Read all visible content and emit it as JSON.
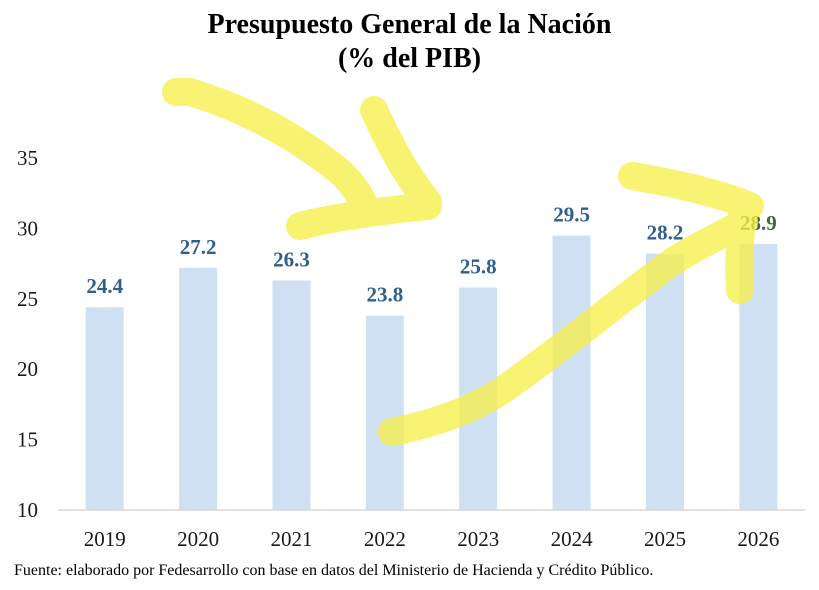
{
  "chart_data": {
    "type": "bar",
    "title": "Presupuesto General de la Nación",
    "subtitle": "(% del PIB)",
    "categories": [
      "2019",
      "2020",
      "2021",
      "2022",
      "2023",
      "2024",
      "2025",
      "2026"
    ],
    "values": [
      24.4,
      27.2,
      26.3,
      23.8,
      25.8,
      29.5,
      28.2,
      28.9
    ],
    "data_labels": [
      "24.4",
      "27.2",
      "26.3",
      "23.8",
      "25.8",
      "29.5",
      "28.2",
      "28.9"
    ],
    "ylim": [
      10,
      35
    ],
    "yticks": [
      "10",
      "15",
      "20",
      "25",
      "30",
      "35"
    ],
    "xlabel": "",
    "ylabel": "",
    "grid": false,
    "legend": "none",
    "colors": {
      "bar": "#cfe0f3",
      "label": "#2e5f8e",
      "label_highlighted": "#3d6b3a",
      "axis": "#d9d9d9",
      "highlighter": "#f6f04a"
    }
  },
  "annotations": {
    "highlighter_marks": 2
  },
  "source": "Fuente: elaborado por Fedesarrollo con base en datos del Ministerio de Hacienda y Crédito Público."
}
